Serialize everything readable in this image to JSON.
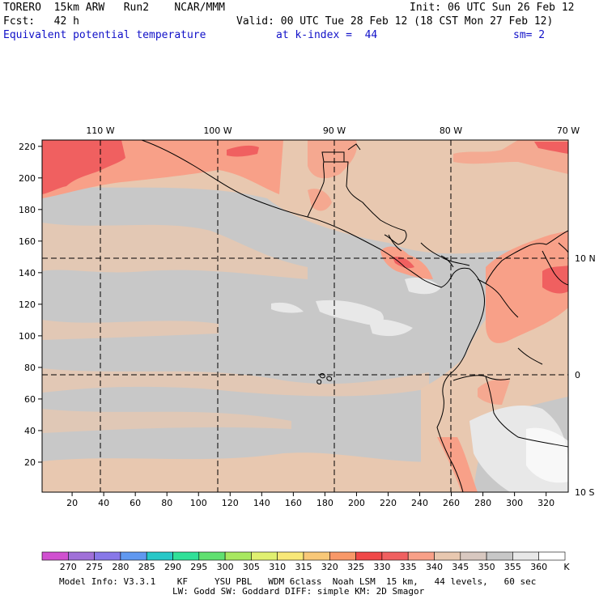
{
  "header": {
    "model": "TORERO",
    "resolution": "15km ARW",
    "run": "Run2",
    "org": "NCAR/MMM",
    "init": "Init: 06 UTC Sun 26 Feb 12",
    "fcst_label": "Fcst:",
    "fcst_value": "42 h",
    "valid": "Valid: 00 UTC Tue 28 Feb 12 (18 CST Mon 27 Feb 12)",
    "field": "Equivalent potential temperature",
    "level": "at k-index =  44",
    "smoothing": "sm= 2"
  },
  "map": {
    "top_lon_labels": [
      "110 W",
      "100 W",
      "90 W",
      "80 W",
      "70 W"
    ],
    "right_lat_labels": [
      "10 N",
      "0",
      "10 S"
    ],
    "y_ticks": [
      "220",
      "200",
      "180",
      "160",
      "140",
      "120",
      "100",
      "80",
      "60",
      "40",
      "20"
    ],
    "x_ticks": [
      "20",
      "40",
      "60",
      "80",
      "100",
      "120",
      "140",
      "160",
      "180",
      "200",
      "220",
      "240",
      "260",
      "280",
      "300",
      "320"
    ],
    "x_range": [
      1,
      334
    ],
    "y_range": [
      1,
      224
    ]
  },
  "colorbar": {
    "labels": [
      "270",
      "275",
      "280",
      "285",
      "290",
      "295",
      "300",
      "305",
      "310",
      "315",
      "320",
      "325",
      "330",
      "335",
      "340",
      "345",
      "350",
      "355",
      "360"
    ],
    "unit": "K",
    "colors": [
      "#d050d0",
      "#a070d8",
      "#8878e8",
      "#6098f0",
      "#28c8c8",
      "#30e098",
      "#60e070",
      "#a8e860",
      "#e0f070",
      "#f8e878",
      "#f8c878",
      "#f89868",
      "#f04848",
      "#f06060",
      "#f8a088",
      "#e8c8b0",
      "#d8c8c0",
      "#c8c8c8",
      "#e8e8e8",
      "#ffffff"
    ]
  },
  "footer": {
    "line1": "Model Info: V3.3.1    KF     YSU PBL   WDM 6class  Noah LSM  15 km,   44 levels,   60 sec",
    "line2": "LW: Godd SW: Goddard DIFF: simple KM: 2D Smagor"
  }
}
